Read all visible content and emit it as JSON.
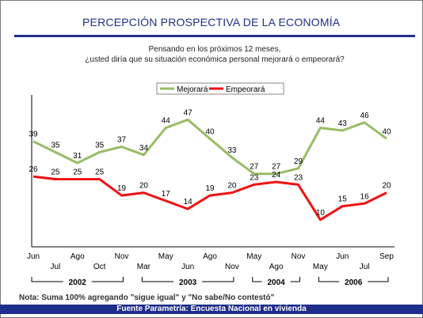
{
  "header": {
    "title": "PERCEPCIÓN PROSPECTIVA DE LA ECONOMÍA",
    "question_line1": "Pensando en los próximos 12 meses,",
    "question_line2": "¿usted diría que su situación económica personal mejorará o empeorará?"
  },
  "footer": {
    "note": "Nota: Suma 100% agregando \"sigue igual\" y \"No sabe/No contestó\"",
    "source": "Fuente Parametría: Encuesta Nacional en vivienda"
  },
  "colors": {
    "mejorara": "#99bb66",
    "empeorara": "#ee1111",
    "accent": "#1f2e8a"
  },
  "chart_data": {
    "type": "line",
    "x": [
      "Jun",
      "Jul",
      "Ago",
      "Oct",
      "Nov",
      "Mar",
      "May",
      "Jun",
      "Ago",
      "Nov",
      "May",
      "Ago",
      "Nov",
      "May",
      "Jun",
      "Jul",
      "Sep"
    ],
    "tick_labels_top": [
      "Jun",
      "Ago",
      "Nov",
      "May",
      "Ago",
      "May",
      "Nov",
      "Jun",
      "Sep"
    ],
    "tick_labels_bottom": [
      "Jul",
      "Oct",
      "Mar",
      "Jun",
      "Nov",
      "Ago",
      "May",
      "Jul"
    ],
    "year_groups": [
      {
        "label": "2002",
        "start": 0,
        "end": 4
      },
      {
        "label": "2003",
        "start": 5,
        "end": 9
      },
      {
        "label": "2004",
        "start": 10,
        "end": 12
      },
      {
        "label": "2006",
        "start": 13,
        "end": 16
      }
    ],
    "series": [
      {
        "name": "Mejorará",
        "values": [
          39,
          35,
          31,
          35,
          37,
          34,
          44,
          47,
          40,
          33,
          27,
          27,
          29,
          44,
          43,
          46,
          40
        ]
      },
      {
        "name": "Empeorará",
        "values": [
          26,
          25,
          25,
          25,
          19,
          20,
          17,
          14,
          19,
          20,
          23,
          24,
          23,
          10,
          15,
          16,
          20
        ]
      }
    ],
    "legend": "top-center",
    "ylim": [
      0,
      55
    ],
    "grid": false
  }
}
